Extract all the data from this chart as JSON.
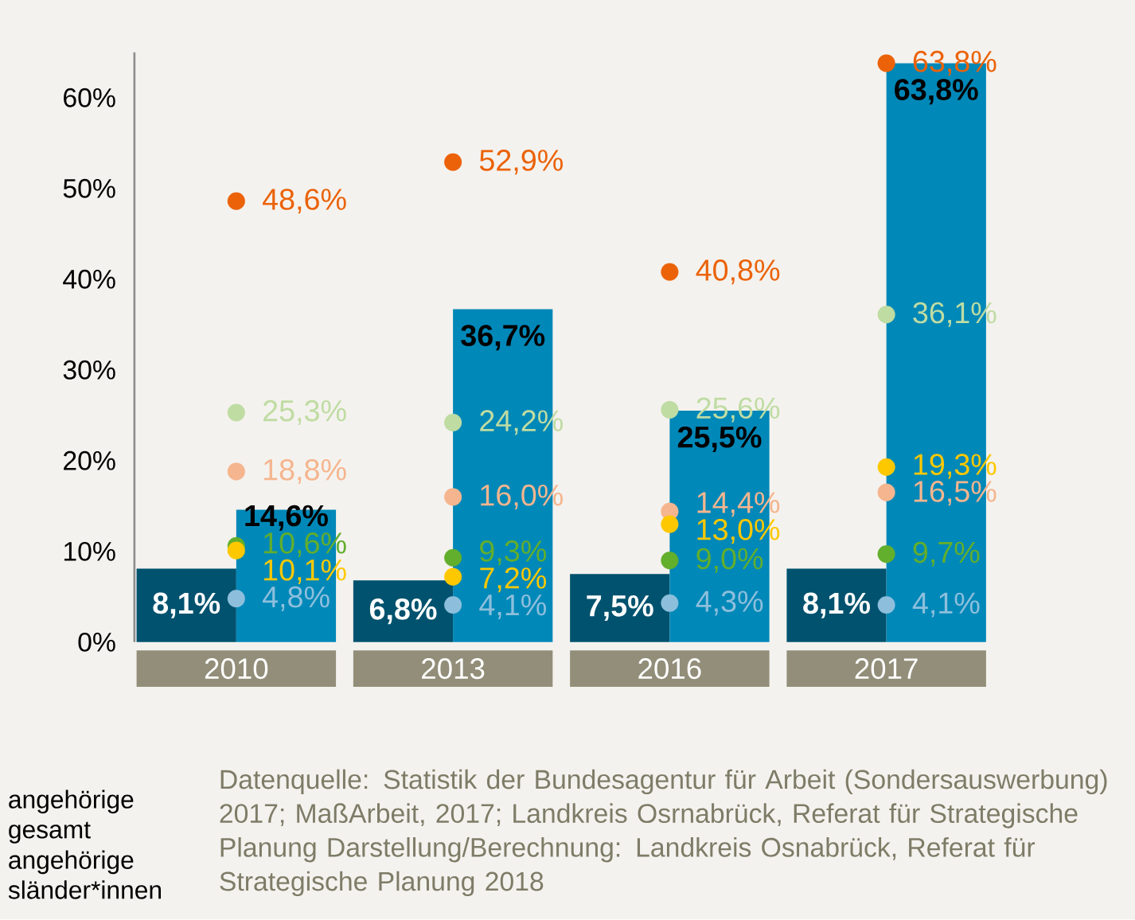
{
  "chart_data": {
    "type": "bar",
    "categories": [
      "2010",
      "2013",
      "2016",
      "2017"
    ],
    "series": [
      {
        "color": "#00526e",
        "values": [
          8.1,
          6.8,
          7.5,
          8.1
        ],
        "value_labels": [
          "8,1%",
          "6,8%",
          "7,5%",
          "8,1%"
        ]
      },
      {
        "color": "#0088b8",
        "values": [
          14.6,
          36.7,
          25.5,
          63.8
        ],
        "value_labels": [
          "14,6%",
          "36,7%",
          "25,5%",
          "63,8%"
        ]
      },
      {
        "type": "scatter",
        "color": "#eb6209",
        "values": [
          48.6,
          52.9,
          40.8,
          63.8
        ],
        "value_labels": [
          "48,6%",
          "52,9%",
          "40,8%",
          "63,8%"
        ]
      },
      {
        "type": "scatter",
        "color": "#bfdca3",
        "values": [
          25.3,
          24.2,
          25.6,
          36.1
        ],
        "value_labels": [
          "25,3%",
          "24,2%",
          "25,6%",
          "36,1%"
        ]
      },
      {
        "type": "scatter",
        "color": "#f5b58e",
        "values": [
          18.8,
          16.0,
          14.4,
          16.5
        ],
        "value_labels": [
          "18,8%",
          "16,0%",
          "14,4%",
          "16,5%"
        ]
      },
      {
        "type": "scatter",
        "color": "#62ae2d",
        "values": [
          10.6,
          9.3,
          9.0,
          9.7
        ],
        "value_labels": [
          "10,6%",
          "9,3%",
          "9,0%",
          "9,7%"
        ]
      },
      {
        "type": "scatter",
        "color": "#fdc800",
        "values": [
          10.1,
          7.2,
          13.0,
          19.3
        ],
        "value_labels": [
          "10,1%",
          "7,2%",
          "13,0%",
          "19,3%"
        ]
      },
      {
        "type": "scatter",
        "color": "#8dbfdc",
        "values": [
          4.8,
          4.1,
          4.3,
          4.1
        ],
        "value_labels": [
          "4,8%",
          "4,1%",
          "4,3%",
          "4,1%"
        ]
      }
    ],
    "ylim": [
      0,
      65
    ],
    "yticks": [
      {
        "value": 0,
        "label": "0%"
      },
      {
        "value": 10,
        "label": "10%"
      },
      {
        "value": 20,
        "label": "20%"
      },
      {
        "value": 30,
        "label": "30%"
      },
      {
        "value": 40,
        "label": "40%"
      },
      {
        "value": 50,
        "label": "50%"
      },
      {
        "value": 60,
        "label": "60%"
      }
    ],
    "marker": "circle",
    "annotations": [
      "angehörige gesamt",
      "angehörige sländer*innen",
      "Datenquelle: Statistik der Bundesagentur für Arbeit (Sondersauswerbung) 2017; MaßArbeit, 2017; Landkreis Osrnabrück, Referat für Strategische Planung Darstellung/Berechnung: Landkreis Osnabrück, Referat für Strategische Planung 2018"
    ]
  }
}
